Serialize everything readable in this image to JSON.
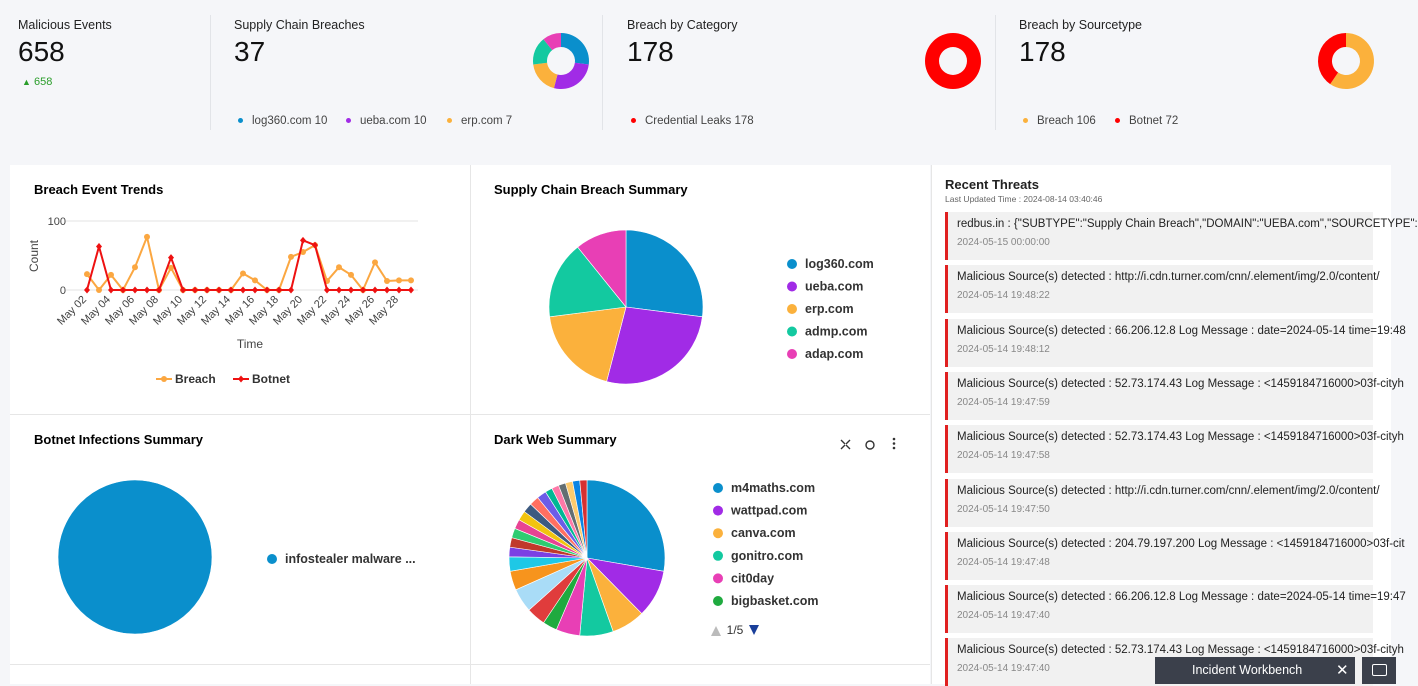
{
  "kpis": [
    {
      "title": "Malicious Events",
      "value": 658,
      "change": 658
    },
    {
      "title": "Supply Chain Breaches",
      "value": 37,
      "legend": [
        "log360.com 10",
        "ueba.com 10",
        "erp.com 7"
      ],
      "donut": {
        "values": [
          10,
          10,
          7,
          6,
          4
        ],
        "colors": [
          "#0a8fcc",
          "#a12be6",
          "#fbb13c",
          "#13c9a0",
          "#e83fb5"
        ]
      }
    },
    {
      "title": "Breach by Category",
      "value": 178,
      "legend": [
        "Credential Leaks 178"
      ],
      "donut": {
        "values": [
          178
        ],
        "colors": [
          "#ff0000"
        ]
      }
    },
    {
      "title": "Breach by Sourcetype",
      "value": 178,
      "legend": [
        "Breach 106",
        "Botnet 72"
      ],
      "donut": {
        "values": [
          106,
          72
        ],
        "colors": [
          "#fbb13c",
          "#ff0000"
        ]
      }
    }
  ],
  "trend": {
    "type": "line",
    "title": "Breach Event Trends",
    "x_label": "Time",
    "y_label": "Count",
    "categories": [
      "May 02",
      null,
      "May 04",
      null,
      "May 06",
      null,
      "May 08",
      null,
      "May 10",
      null,
      "May 12",
      null,
      "May 14",
      null,
      "May 16",
      null,
      "May 18",
      null,
      "May 20",
      null,
      "May 22",
      null,
      "May 24",
      null,
      "May 26",
      null,
      "May 28",
      null
    ],
    "series": [
      {
        "name": "Breach",
        "color": "#fba741",
        "values": [
          23,
          0,
          22,
          0,
          33,
          77,
          0,
          32,
          0,
          0,
          0,
          0,
          0,
          24,
          14,
          0,
          0,
          48,
          55,
          65,
          13,
          33,
          22,
          0,
          40,
          13,
          14,
          14
        ]
      },
      {
        "name": "Botnet",
        "color": "#ee1111",
        "values": [
          0,
          63,
          0,
          0,
          0,
          0,
          0,
          47,
          0,
          0,
          0,
          0,
          0,
          0,
          0,
          0,
          0,
          0,
          72,
          65,
          0,
          0,
          0,
          0,
          0,
          0,
          0,
          0
        ]
      }
    ],
    "ylim": [
      0,
      100
    ],
    "yticks": [
      0,
      100
    ],
    "grid": true
  },
  "supply_chain_summary": {
    "type": "pie",
    "title": "Supply Chain Breach Summary",
    "labels": [
      "log360.com",
      "ueba.com",
      "erp.com",
      "admp.com",
      "adap.com"
    ],
    "values": [
      10,
      10,
      7,
      6,
      4
    ],
    "colors": [
      "#0a8fcc",
      "#a12be6",
      "#fbb13c",
      "#13c9a0",
      "#e83fb5"
    ]
  },
  "botnet_summary": {
    "type": "pie",
    "title": "Botnet Infections Summary",
    "labels": [
      "infostealer malware ..."
    ],
    "values": [
      72
    ],
    "colors": [
      "#0a8fcc"
    ]
  },
  "dark_web_summary": {
    "type": "pie",
    "title": "Dark Web Summary",
    "labels": [
      "m4maths.com",
      "wattpad.com",
      "canva.com",
      "gonitro.com",
      "cit0day",
      "bigbasket.com"
    ],
    "values": [
      28,
      10,
      7,
      7,
      5,
      3,
      4,
      5,
      4,
      3,
      2,
      2,
      2,
      2,
      2,
      2,
      2,
      2,
      1.5,
      1.5,
      1.5,
      1.5,
      1.5,
      1.5
    ],
    "colors": [
      "#0a8fcc",
      "#a12be6",
      "#fbb13c",
      "#13c9a0",
      "#e83fb5",
      "#1faa3f",
      "#e03c3c",
      "#a9dcf7",
      "#f7941d",
      "#1ec8e6",
      "#7b3fe4",
      "#c0392b",
      "#2ecc71",
      "#e84393",
      "#f1c40f",
      "#3d5a80",
      "#ff6f61",
      "#6c5ce7",
      "#00b894",
      "#fd79a8",
      "#636e72",
      "#fdcb6e",
      "#0984e3",
      "#d63031"
    ],
    "pagination": "1/5"
  },
  "recent_threats": {
    "title": "Recent Threats",
    "updated": "Last Updated Time : 2024-08-14 03:40:46",
    "items": [
      {
        "message": "redbus.in : {\"SUBTYPE\":\"Supply Chain Breach\",\"DOMAIN\":\"UEBA.com\",\"SOURCETYPE\":",
        "time": "2024-05-15 00:00:00"
      },
      {
        "message": "Malicious Source(s) detected : http://i.cdn.turner.com/cnn/.element/img/2.0/content/",
        "time": "2024-05-14 19:48:22"
      },
      {
        "message": "Malicious Source(s) detected : 66.206.12.8 Log Message : date=2024-05-14 time=19:48",
        "time": "2024-05-14 19:48:12"
      },
      {
        "message": "Malicious Source(s) detected : 52.73.174.43 Log Message : <1459184716000>03f-cityh",
        "time": "2024-05-14 19:47:59"
      },
      {
        "message": "Malicious Source(s) detected : 52.73.174.43 Log Message : <1459184716000>03f-cityh",
        "time": "2024-05-14 19:47:58"
      },
      {
        "message": "Malicious Source(s) detected : http://i.cdn.turner.com/cnn/.element/img/2.0/content/",
        "time": "2024-05-14 19:47:50"
      },
      {
        "message": "Malicious Source(s) detected : 204.79.197.200 Log Message : <1459184716000>03f-cit",
        "time": "2024-05-14 19:47:48"
      },
      {
        "message": "Malicious Source(s) detected : 66.206.12.8 Log Message : date=2024-05-14 time=19:47",
        "time": "2024-05-14 19:47:40"
      },
      {
        "message": "Malicious Source(s) detected : 52.73.174.43 Log Message : <1459184716000>03f-cityh",
        "time": "2024-05-14 19:47:40"
      }
    ]
  },
  "incident_workbench": "Incident Workbench"
}
